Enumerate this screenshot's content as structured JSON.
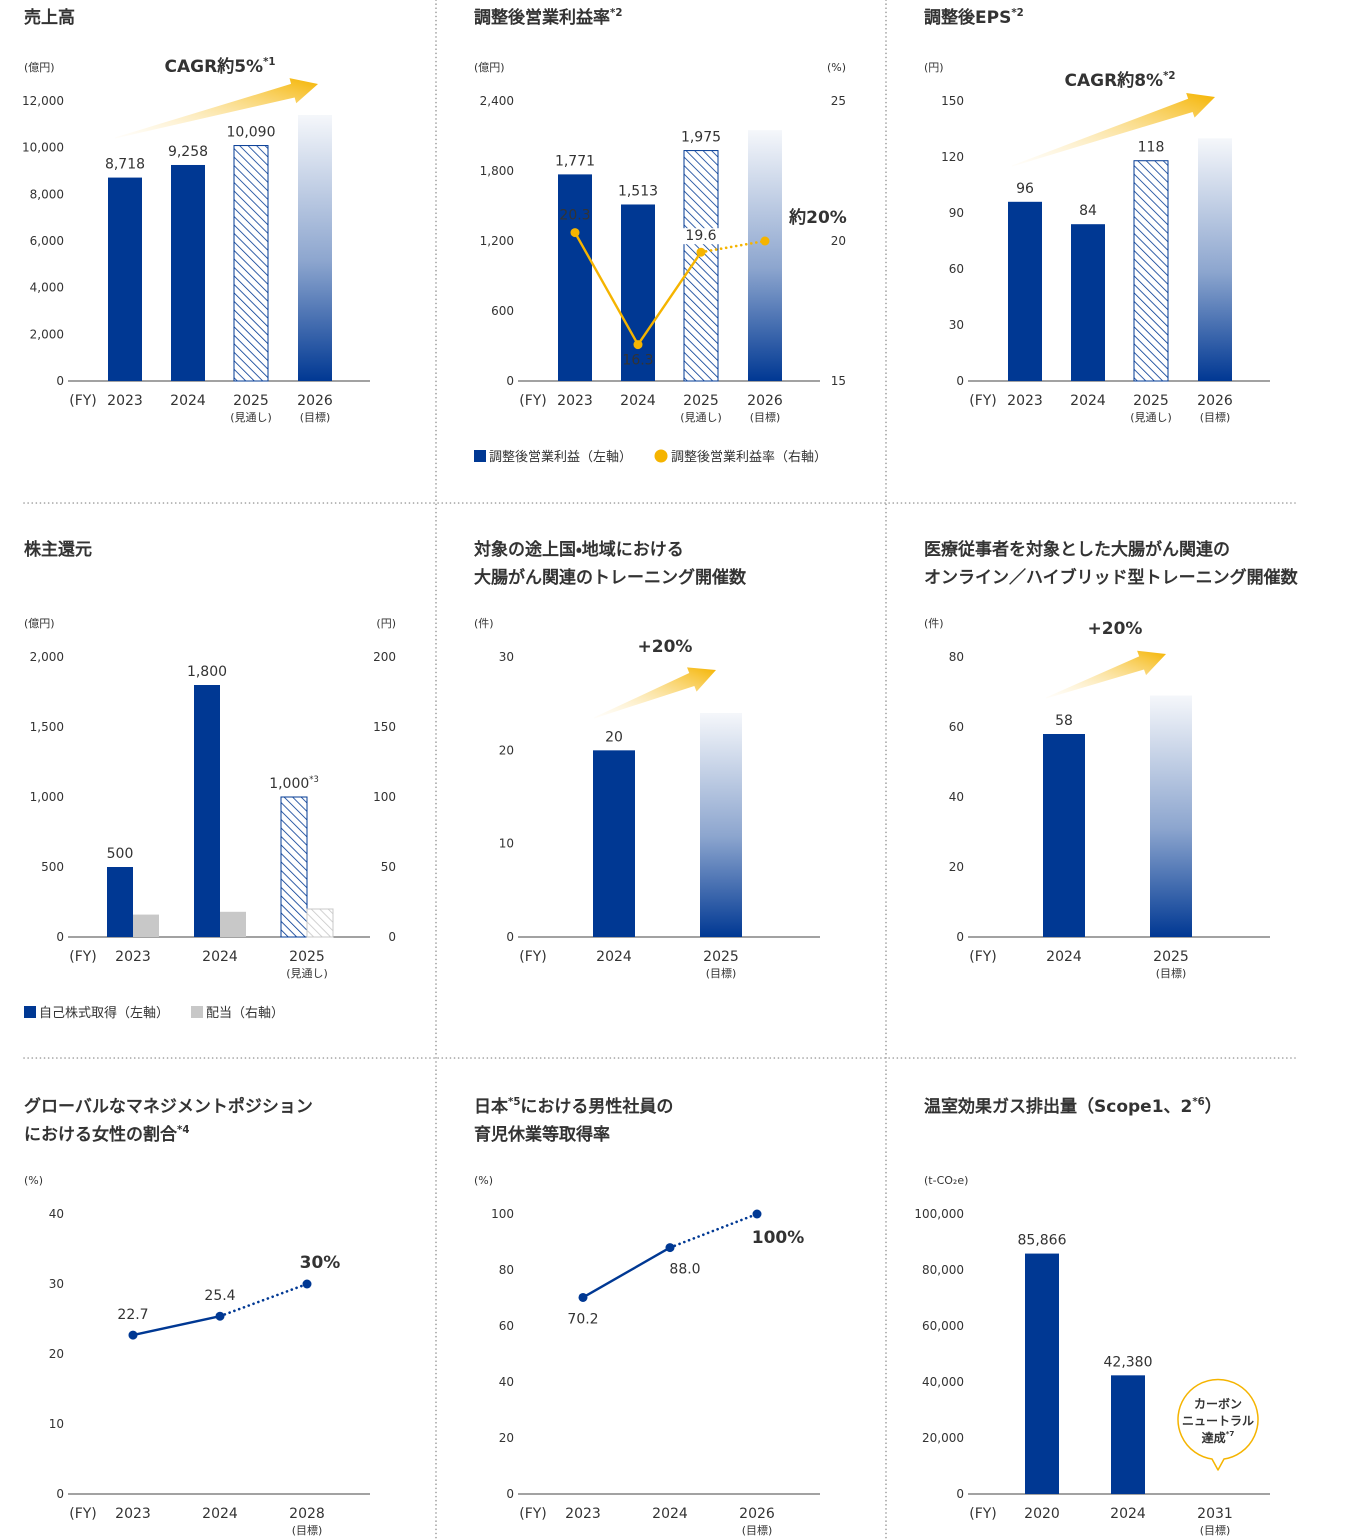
{
  "chart_data": [
    {
      "type": "bar",
      "title": [
        "売上高"
      ],
      "y_unit": "(億円)",
      "x_prefix": "(FY)",
      "categories": [
        "2023",
        "2024",
        "2025",
        "2026"
      ],
      "category_notes": [
        null,
        null,
        "(見通し)",
        "(目標)"
      ],
      "ylim": [
        0,
        12000
      ],
      "yticks": [
        0,
        {
          "value": 2000,
          "label": "2,000"
        },
        {
          "value": 4000,
          "label": "4,000"
        },
        {
          "value": 6000,
          "label": "6,000"
        },
        {
          "value": 8000,
          "label": "8,000"
        },
        {
          "value": 10000,
          "label": "10,000"
        },
        {
          "value": 12000,
          "label": "12,000"
        }
      ],
      "values": [
        8718,
        9258,
        10090,
        11400
      ],
      "value_labels": [
        "8,718",
        "9,258",
        "10,090",
        null
      ],
      "bar_styles": [
        "solid",
        "solid",
        "hatched",
        "gradient"
      ],
      "color": "#003893",
      "annotation": {
        "text": "CAGR約5%*1",
        "color": "#f5b400"
      }
    },
    {
      "type": "bar_line",
      "title": [
        "調整後営業利益率*2"
      ],
      "y_unit": "(億円)",
      "y2_unit": "(%)",
      "x_prefix": "(FY)",
      "categories": [
        "2023",
        "2024",
        "2025",
        "2026"
      ],
      "category_notes": [
        null,
        null,
        "(見通し)",
        "(目標)"
      ],
      "ylim": [
        0,
        2400
      ],
      "yticks": [
        0,
        600,
        {
          "value": 1200,
          "label": "1,200"
        },
        {
          "value": 1800,
          "label": "1,800"
        },
        {
          "value": 2400,
          "label": "2,400"
        }
      ],
      "y2lim": [
        15,
        25
      ],
      "y2ticks": [
        15,
        20,
        25
      ],
      "series": [
        {
          "name": "調整後営業利益（左軸）",
          "type": "bar",
          "color": "#003893",
          "values": [
            1771,
            1513,
            1975,
            2150
          ],
          "value_labels": [
            "1,771",
            "1,513",
            "1,975",
            null
          ],
          "bar_styles": [
            "solid",
            "solid",
            "hatched",
            "gradient"
          ]
        },
        {
          "name": "調整後営業利益率（右軸）",
          "type": "line",
          "axis": "y2",
          "color": "#f5b400",
          "values": [
            20.3,
            16.3,
            19.6,
            20
          ],
          "value_labels": [
            "20.3",
            "16.3",
            "19.6",
            "約20%"
          ],
          "segment_styles": [
            "solid",
            "solid",
            "dotted"
          ]
        }
      ],
      "legend": "bottom-left",
      "highlight_color": "#f5b400"
    },
    {
      "type": "bar",
      "title": [
        "調整後EPS*2"
      ],
      "y_unit": "(円)",
      "x_prefix": "(FY)",
      "categories": [
        "2023",
        "2024",
        "2025",
        "2026"
      ],
      "category_notes": [
        null,
        null,
        "(見通し)",
        "(目標)"
      ],
      "ylim": [
        0,
        150
      ],
      "yticks": [
        0,
        30,
        60,
        90,
        120,
        150
      ],
      "values": [
        96,
        84,
        118,
        130
      ],
      "value_labels": [
        "96",
        "84",
        "118",
        null
      ],
      "bar_styles": [
        "solid",
        "solid",
        "hatched",
        "gradient"
      ],
      "color": "#003893",
      "annotation": {
        "text": "CAGR約8%*2",
        "color": "#f5b400"
      }
    },
    {
      "type": "grouped_bar",
      "title": [
        "株主還元"
      ],
      "y_unit": "(億円)",
      "y2_unit": "(円)",
      "x_prefix": "(FY)",
      "categories": [
        "2023",
        "2024",
        "2025"
      ],
      "category_notes": [
        null,
        null,
        "(見通し)"
      ],
      "ylim": [
        0,
        2000
      ],
      "yticks": [
        0,
        500,
        {
          "value": 1000,
          "label": "1,000"
        },
        {
          "value": 1500,
          "label": "1,500"
        },
        {
          "value": 2000,
          "label": "2,000"
        }
      ],
      "y2lim": [
        0,
        200
      ],
      "y2ticks": [
        0,
        50,
        100,
        150,
        200
      ],
      "series": [
        {
          "name": "自己株式取得（左軸）",
          "color": "#003893",
          "values": [
            500,
            1800,
            1000
          ],
          "value_labels": [
            "500",
            "1,800",
            "1,000*3"
          ],
          "bar_styles": [
            "solid",
            "solid",
            "hatched"
          ]
        },
        {
          "name": "配当（右軸）",
          "axis": "y2",
          "color": "#c8c8c8",
          "values": [
            16,
            18,
            20
          ],
          "bar_styles": [
            "solid",
            "solid",
            "hatched"
          ]
        }
      ],
      "legend": "bottom-left"
    },
    {
      "type": "bar",
      "title": [
        "対象の途上国・地域における",
        "大腸がん関連のトレーニング開催数"
      ],
      "y_unit": "(件)",
      "x_prefix": "(FY)",
      "categories": [
        "2024",
        "2025"
      ],
      "category_notes": [
        null,
        "(目標)"
      ],
      "ylim": [
        0,
        30
      ],
      "yticks": [
        0,
        10,
        20,
        30
      ],
      "values": [
        20,
        24
      ],
      "value_labels": [
        "20",
        null
      ],
      "bar_styles": [
        "solid",
        "gradient"
      ],
      "color": "#003893",
      "annotation": {
        "text": "+20%",
        "color": "#f5b400"
      }
    },
    {
      "type": "bar",
      "title": [
        "医療従事者を対象とした大腸がん関連の",
        "オンライン／ハイブリッド型トレーニング開催数"
      ],
      "y_unit": "(件)",
      "x_prefix": "(FY)",
      "categories": [
        "2024",
        "2025"
      ],
      "category_notes": [
        null,
        "(目標)"
      ],
      "ylim": [
        0,
        80
      ],
      "yticks": [
        0,
        20,
        40,
        60,
        80
      ],
      "values": [
        58,
        69
      ],
      "value_labels": [
        "58",
        null
      ],
      "bar_styles": [
        "solid",
        "gradient"
      ],
      "color": "#003893",
      "annotation": {
        "text": "+20%",
        "color": "#f5b400"
      }
    },
    {
      "type": "line",
      "title": [
        "グローバルなマネジメントポジション",
        "における女性の割合*4"
      ],
      "y_unit": "(%)",
      "x_prefix": "(FY)",
      "categories": [
        "2023",
        "2024",
        "2028"
      ],
      "category_notes": [
        null,
        null,
        "(目標)"
      ],
      "ylim": [
        0,
        40
      ],
      "yticks": [
        0,
        10,
        20,
        30,
        40
      ],
      "values": [
        22.7,
        25.4,
        30
      ],
      "value_labels": [
        "22.7",
        "25.4",
        "30%"
      ],
      "segment_styles": [
        "solid",
        "dotted"
      ],
      "color": "#003893",
      "highlight_color": "#f5b400"
    },
    {
      "type": "line",
      "title": [
        "日本*5における男性社員の",
        "育児休業等取得率"
      ],
      "y_unit": "(%)",
      "x_prefix": "(FY)",
      "categories": [
        "2023",
        "2024",
        "2026"
      ],
      "category_notes": [
        null,
        null,
        "(目標)"
      ],
      "ylim": [
        0,
        100
      ],
      "yticks": [
        0,
        20,
        40,
        60,
        80,
        100
      ],
      "values": [
        70.2,
        88,
        100
      ],
      "value_labels": [
        "70.2",
        "88.0",
        "100%"
      ],
      "segment_styles": [
        "solid",
        "dotted"
      ],
      "color": "#003893",
      "highlight_color": "#f5b400"
    },
    {
      "type": "bar",
      "title": [
        "温室効果ガス排出量（Scope1、2*6）"
      ],
      "y_unit": "(t-CO₂e)",
      "x_prefix": "(FY)",
      "categories": [
        "2020",
        "2024",
        "2031"
      ],
      "category_notes": [
        null,
        null,
        "(目標)"
      ],
      "ylim": [
        0,
        100000
      ],
      "yticks": [
        0,
        {
          "value": 20000,
          "label": "20,000"
        },
        {
          "value": 40000,
          "label": "40,000"
        },
        {
          "value": 60000,
          "label": "60,000"
        },
        {
          "value": 80000,
          "label": "80,000"
        },
        {
          "value": 100000,
          "label": "100,000"
        }
      ],
      "values": [
        85866,
        42380,
        null
      ],
      "value_labels": [
        "85,866",
        "42,380",
        null
      ],
      "bar_styles": [
        "solid",
        "solid",
        "solid"
      ],
      "color": "#003893",
      "callout": {
        "lines": [
          "カーボン",
          "ニュートラル",
          "達成*7"
        ],
        "color": "#f5b400"
      }
    }
  ]
}
